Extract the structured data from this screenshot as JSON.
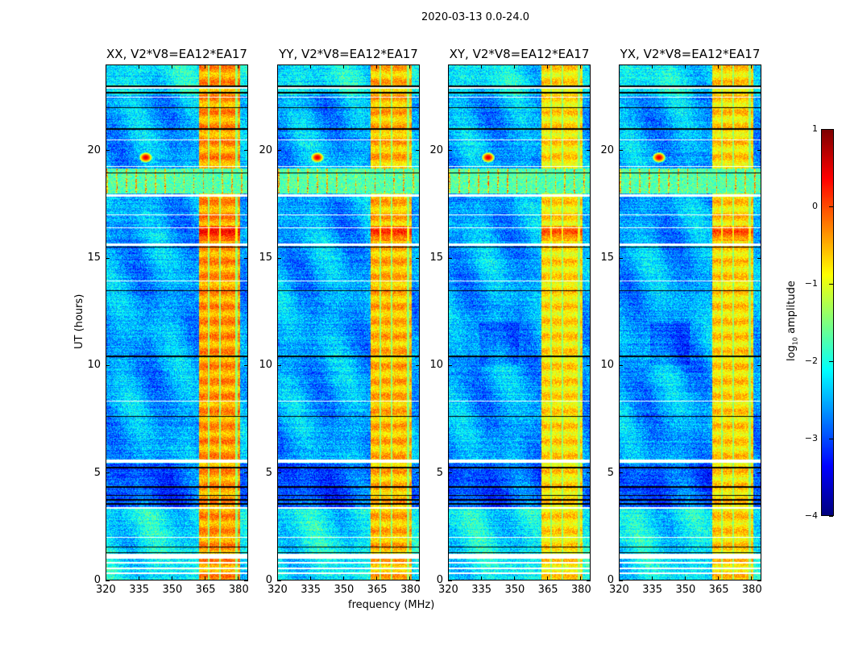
{
  "chart_data": {
    "type": "heatmap",
    "suptitle": "2020-03-13 0.0-24.0",
    "xlabel": "frequency (MHz)",
    "ylabel": "UT (hours)",
    "xlim": [
      320,
      384.4
    ],
    "ylim": [
      0,
      24
    ],
    "xticks": [
      320,
      335,
      350,
      365,
      380
    ],
    "yticks": [
      0,
      5,
      10,
      15,
      20
    ],
    "colorbar": {
      "label_base": "log",
      "label_sub": "10",
      "label_rest": " amplitude",
      "range": [
        -4,
        1
      ],
      "ticks": [
        1,
        0,
        -1,
        -2,
        -3,
        -4
      ],
      "tick_labels": [
        "1",
        "0",
        "−1",
        "−2",
        "−3",
        "−4"
      ],
      "colormap": "jet"
    },
    "panels": [
      {
        "title": "XX, V2*V8=EA12*EA17",
        "rfi_level": -0.4
      },
      {
        "title": "YY, V2*V8=EA12*EA17",
        "rfi_level": -0.55
      },
      {
        "title": "XY, V2*V8=EA12*EA17",
        "rfi_level": -0.75
      },
      {
        "title": "YX, V2*V8=EA12*EA17",
        "rfi_level": -0.7
      }
    ],
    "background_level": -2.7,
    "rfi_band_mhz": [
      362.5,
      381
    ],
    "rfi_gap_columns_mhz": [
      [
        366.2,
        367.2
      ],
      [
        371.6,
        372.4
      ],
      [
        378.8,
        380
      ]
    ],
    "burst_hours": [
      18.0,
      19.2
    ],
    "burst_spike_spacing_mhz": 4.4,
    "point_source": {
      "freq_mhz": 338,
      "hour": 19.7,
      "level": 0.5
    },
    "flagged_white_hours": [
      [
        0.25,
        0.33
      ],
      [
        0.5,
        0.58
      ],
      [
        0.75,
        0.83
      ],
      [
        0.98,
        1.2
      ],
      [
        1.95,
        2.0
      ],
      [
        3.3,
        3.38
      ],
      [
        5.45,
        5.6
      ],
      [
        8.3,
        8.35
      ],
      [
        13.9,
        13.95
      ],
      [
        15.58,
        15.7
      ],
      [
        16.4,
        16.45
      ],
      [
        17.0,
        17.05
      ],
      [
        17.85,
        17.98
      ],
      [
        19.25,
        19.3
      ],
      [
        20.5,
        20.55
      ],
      [
        22.5,
        22.55
      ],
      [
        22.9,
        23.0
      ]
    ],
    "flagged_black_hours": [
      [
        1.23,
        1.28
      ],
      [
        1.5,
        1.54
      ],
      [
        3.5,
        3.56
      ],
      [
        3.7,
        3.75
      ],
      [
        3.9,
        3.95
      ],
      [
        4.3,
        4.35
      ],
      [
        5.2,
        5.25
      ],
      [
        7.6,
        7.65
      ],
      [
        10.4,
        10.45
      ],
      [
        13.45,
        13.5
      ],
      [
        15.5,
        15.55
      ],
      [
        18.95,
        19.0
      ],
      [
        21.0,
        21.05
      ],
      [
        22.0,
        22.05
      ],
      [
        22.7,
        22.75
      ],
      [
        23.0,
        23.05
      ]
    ]
  }
}
